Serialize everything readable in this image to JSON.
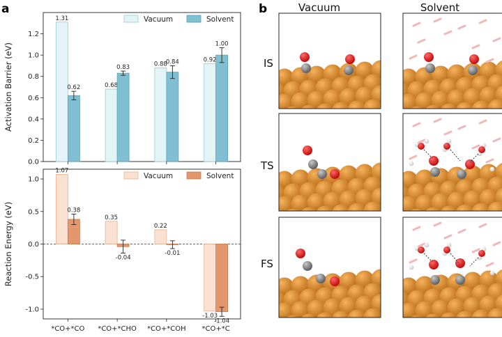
{
  "panel_a_letter": "a",
  "panel_b_letter": "b",
  "chart_data": [
    {
      "type": "bar",
      "ylabel": "Activation Barrier (eV)",
      "ylim": [
        0,
        1.4
      ],
      "yticks": [
        "0.0",
        "0.2",
        "0.4",
        "0.6",
        "0.8",
        "1.0",
        "1.2"
      ],
      "categories": [
        "*CO+*CO",
        "*CO+*CHO",
        "*CO+*COH",
        "*CO+*C"
      ],
      "grid": false,
      "legend": "top-right",
      "series": [
        {
          "name": "Vacuum",
          "values": [
            1.31,
            0.68,
            0.88,
            0.92
          ],
          "labels": [
            "1.31",
            "0.68",
            "0.88",
            "0.92"
          ],
          "errors": [
            0,
            0,
            0,
            0
          ],
          "fill": "#e3f4f7",
          "edge": "#9ccad4"
        },
        {
          "name": "Solvent",
          "values": [
            0.62,
            0.83,
            0.84,
            1.0
          ],
          "labels": [
            "0.62",
            "0.83",
            "0.84",
            "1.00"
          ],
          "errors": [
            0.04,
            0.02,
            0.06,
            0.07
          ],
          "fill": "#7fbfd1",
          "edge": "#5aa2b8"
        }
      ]
    },
    {
      "type": "bar",
      "ylabel": "Reaction Energy (eV)",
      "ylim": [
        -1.15,
        1.15
      ],
      "yticks": [
        "-1.0",
        "-0.5",
        "0.0",
        "0.5",
        "1.0"
      ],
      "categories": [
        "*CO+*CO",
        "*CO+*CHO",
        "*CO+*COH",
        "*CO+*C"
      ],
      "grid": false,
      "legend": "top-right",
      "zero_line": "dashed",
      "series": [
        {
          "name": "Vacuum",
          "values": [
            1.07,
            0.35,
            0.22,
            -1.03
          ],
          "labels": [
            "1.07",
            "0.35",
            "0.22",
            "-1.03"
          ],
          "errors": [
            0,
            0,
            0,
            0
          ],
          "fill": "#fbe1d2",
          "edge": "#e7b394"
        },
        {
          "name": "Solvent",
          "values": [
            0.38,
            -0.04,
            -0.01,
            -1.04
          ],
          "labels": [
            "0.38",
            "-0.04",
            "-0.01",
            "-1.04"
          ],
          "errors": [
            0.08,
            0.1,
            0.06,
            0.07
          ],
          "fill": "#e2976c",
          "edge": "#c87a50"
        }
      ]
    }
  ],
  "structures": {
    "columns": [
      "Vacuum",
      "Solvent"
    ],
    "rows": [
      "IS",
      "TS",
      "FS"
    ]
  }
}
